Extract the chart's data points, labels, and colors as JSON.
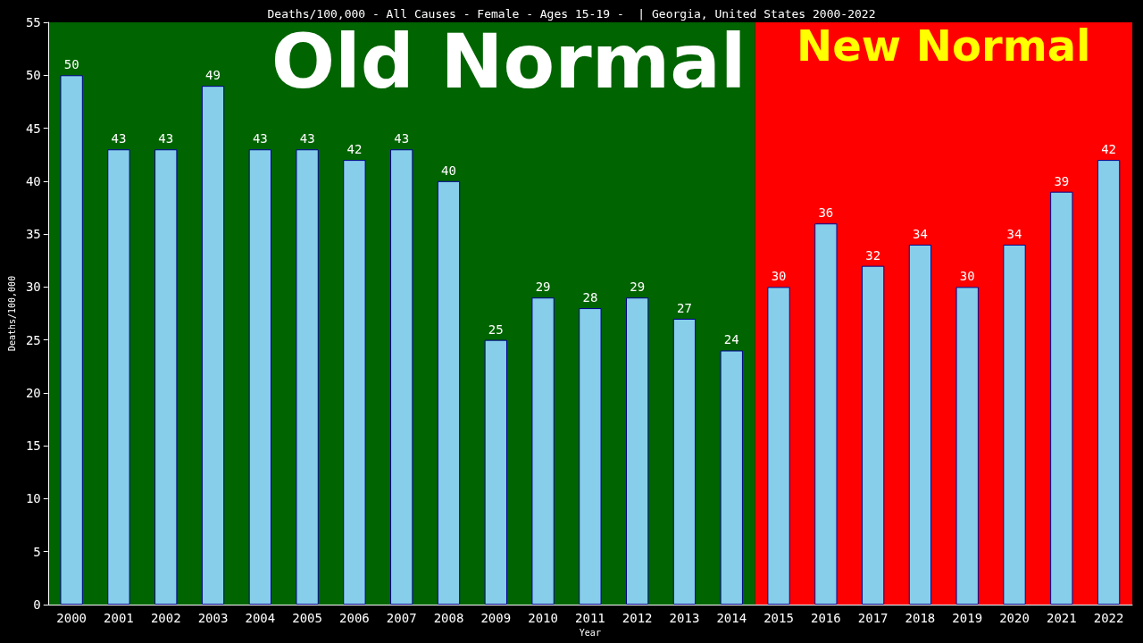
{
  "chart_data": {
    "type": "bar",
    "title": "Deaths/100,000 - All Causes - Female - Ages 15-19 -  | Georgia, United States 2000-2022",
    "xlabel": "Year",
    "ylabel": "Deaths/100,000",
    "categories": [
      "2000",
      "2001",
      "2002",
      "2003",
      "2004",
      "2005",
      "2006",
      "2007",
      "2008",
      "2009",
      "2010",
      "2011",
      "2012",
      "2013",
      "2014",
      "2015",
      "2016",
      "2017",
      "2018",
      "2019",
      "2020",
      "2021",
      "2022"
    ],
    "values": [
      50,
      43,
      43,
      49,
      43,
      43,
      42,
      43,
      40,
      25,
      29,
      28,
      29,
      27,
      24,
      30,
      36,
      32,
      34,
      30,
      34,
      39,
      42
    ],
    "color": "#87ceeb",
    "data_labels": true,
    "ylim": [
      0,
      55
    ],
    "yticks": [
      0,
      5,
      10,
      15,
      20,
      25,
      30,
      35,
      40,
      45,
      50,
      55
    ],
    "grid": false,
    "bands": [
      {
        "axis": "x",
        "from": "2000",
        "to": "2014",
        "label": "Old Normal",
        "color": "#006400"
      },
      {
        "axis": "x",
        "from": "2015",
        "to": "2022",
        "label": "New Normal",
        "color": "#ff0000"
      }
    ]
  }
}
